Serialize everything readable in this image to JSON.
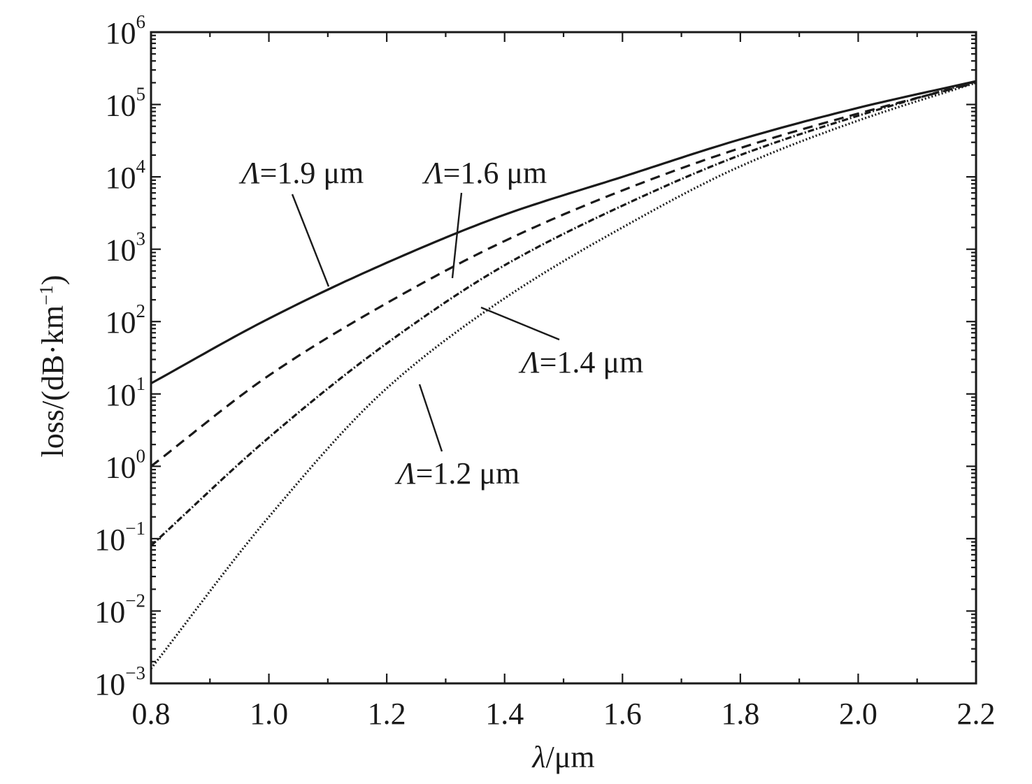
{
  "chart_data": {
    "type": "line",
    "xlabel_sym": "λ",
    "xlabel_unit": "/μm",
    "ylabel_text": "loss/(dB·km",
    "ylabel_sup": "−1",
    "ylabel_close": ")",
    "xlim": [
      0.8,
      2.2
    ],
    "ylim": [
      0.001,
      1000000
    ],
    "yscale": "log",
    "grid": false,
    "x_ticks": [
      "0.8",
      "1.0",
      "1.2",
      "1.4",
      "1.6",
      "1.8",
      "2.0",
      "2.2"
    ],
    "y_ticks": [
      {
        "base": "10",
        "exp": "−3"
      },
      {
        "base": "10",
        "exp": "−2"
      },
      {
        "base": "10",
        "exp": "−1"
      },
      {
        "base": "10",
        "exp": "0"
      },
      {
        "base": "10",
        "exp": "1"
      },
      {
        "base": "10",
        "exp": "2"
      },
      {
        "base": "10",
        "exp": "3"
      },
      {
        "base": "10",
        "exp": "4"
      },
      {
        "base": "10",
        "exp": "5"
      },
      {
        "base": "10",
        "exp": "6"
      }
    ],
    "x": [
      0.8,
      1.0,
      1.2,
      1.4,
      1.6,
      1.8,
      2.0,
      2.2
    ],
    "series": [
      {
        "key": "L19",
        "sym": "Λ",
        "label": "=1.9 μm",
        "dash": "solid",
        "values": [
          14,
          110,
          650,
          3000,
          10000,
          33000,
          90000,
          210000
        ]
      },
      {
        "key": "L16",
        "sym": "Λ",
        "label": "=1.6 μm",
        "dash": "dashed",
        "values": [
          1,
          18,
          180,
          1300,
          6500,
          25000,
          75000,
          200000
        ]
      },
      {
        "key": "L14",
        "sym": "Λ",
        "label": "=1.4 μm",
        "dash": "dashdot",
        "values": [
          0.08,
          2.5,
          50,
          600,
          4000,
          20000,
          70000,
          210000
        ]
      },
      {
        "key": "L12",
        "sym": "Λ",
        "label": "=1.2 μm",
        "dash": "dotted",
        "values": [
          0.0016,
          0.2,
          12,
          210,
          2000,
          14000,
          60000,
          200000
        ]
      }
    ]
  }
}
